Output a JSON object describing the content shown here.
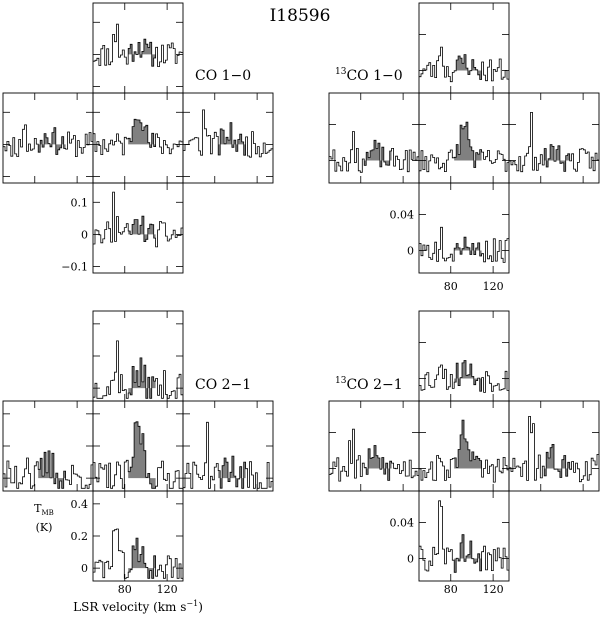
{
  "title": "I18596",
  "xlabel": "LSR velocity (km s",
  "xlabel_sup": "−1",
  "xlabel_close": ")",
  "ylabel_main": "T",
  "ylabel_sub": "MB",
  "ylabel_unit": "(K)",
  "colors": {
    "line": "#000000",
    "shade": "#808080"
  },
  "chart_data": [
    {
      "id": "co10",
      "type": "line",
      "panel_label": {
        "sup": "",
        "text": "CO 1−0"
      },
      "x_ticklabels": [],
      "y_ticklabels": [
        "0.1",
        "0",
        "−0.1"
      ],
      "y_tick_values": [
        0.1,
        0,
        -0.1
      ],
      "ylim": [
        -0.12,
        0.16
      ],
      "xlim": [
        50,
        135
      ],
      "layout": "cross (north, west, center, east, south)",
      "shaded_band_kms": [
        82,
        108
      ],
      "peak_intensity_scale": 0.09,
      "seed": 11
    },
    {
      "id": "co13_10",
      "type": "line",
      "panel_label": {
        "sup": "13",
        "text": "CO 1−0"
      },
      "x_ticklabels": [
        "80",
        "120"
      ],
      "y_ticklabels": [
        "0.04",
        "0"
      ],
      "y_tick_values": [
        0.04,
        0
      ],
      "ylim": [
        -0.025,
        0.075
      ],
      "xlim": [
        50,
        135
      ],
      "layout": "cross (north, west, center, east, south)",
      "shaded_band_kms": [
        82,
        108
      ],
      "peak_intensity_scale": 0.03,
      "seed": 23
    },
    {
      "id": "co21",
      "type": "line",
      "panel_label": {
        "sup": "",
        "text": "CO 2−1"
      },
      "x_ticklabels": [
        "80",
        "120"
      ],
      "y_ticklabels": [
        "0.4",
        "0.2",
        "0"
      ],
      "y_tick_values": [
        0.4,
        0.2,
        0
      ],
      "ylim": [
        -0.08,
        0.48
      ],
      "xlim": [
        50,
        135
      ],
      "layout": "cross (north, west, center, east, south)",
      "shaded_band_kms": [
        82,
        108
      ],
      "peak_intensity_scale": 0.25,
      "seed": 37
    },
    {
      "id": "co13_21",
      "type": "line",
      "panel_label": {
        "sup": "13",
        "text": "CO 2−1"
      },
      "x_ticklabels": [
        "80",
        "120"
      ],
      "y_ticklabels": [
        "0.04",
        "0"
      ],
      "y_tick_values": [
        0.04,
        0
      ],
      "ylim": [
        -0.025,
        0.075
      ],
      "xlim": [
        50,
        135
      ],
      "layout": "cross (north, west, center, east, south)",
      "shaded_band_kms": [
        82,
        108
      ],
      "peak_intensity_scale": 0.035,
      "seed": 53
    }
  ]
}
